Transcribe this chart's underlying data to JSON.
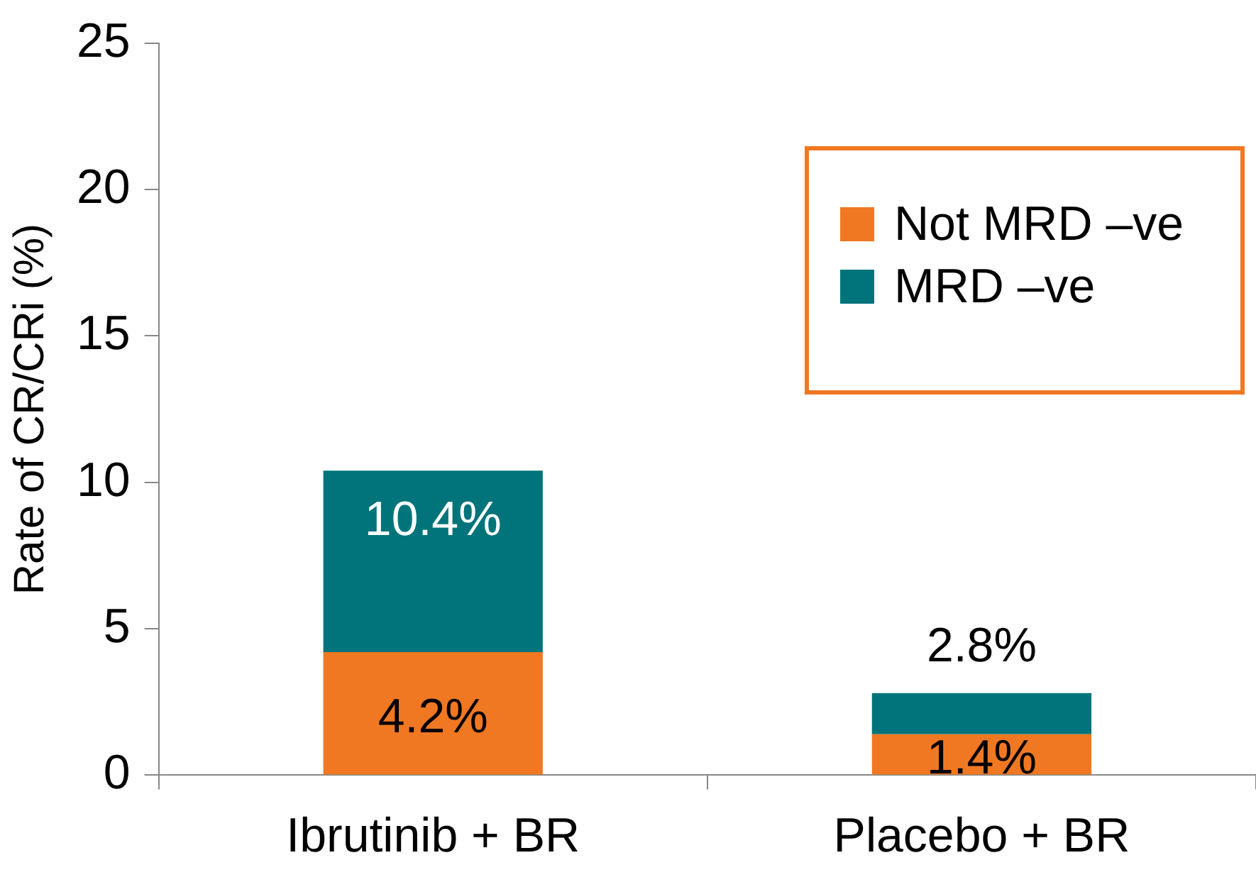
{
  "chart_data": {
    "type": "bar",
    "stacked": true,
    "categories": [
      "Ibrutinib + BR",
      "Placebo + BR"
    ],
    "ylabel": "Rate of CR/CRi (%)",
    "ylim": [
      0,
      25
    ],
    "yticks": [
      0,
      5,
      10,
      15,
      20,
      25
    ],
    "grid": false,
    "legend": "top right",
    "series": [
      {
        "name": "Not MRD –ve",
        "color": "#f07822",
        "values": [
          4.2,
          1.4
        ],
        "value_labels": [
          "4.2%",
          "1.4%"
        ]
      },
      {
        "name": "MRD –ve",
        "color": "#00747a",
        "values": [
          6.2,
          1.4
        ]
      }
    ],
    "totals": [
      "10.4%",
      "2.8%"
    ]
  }
}
